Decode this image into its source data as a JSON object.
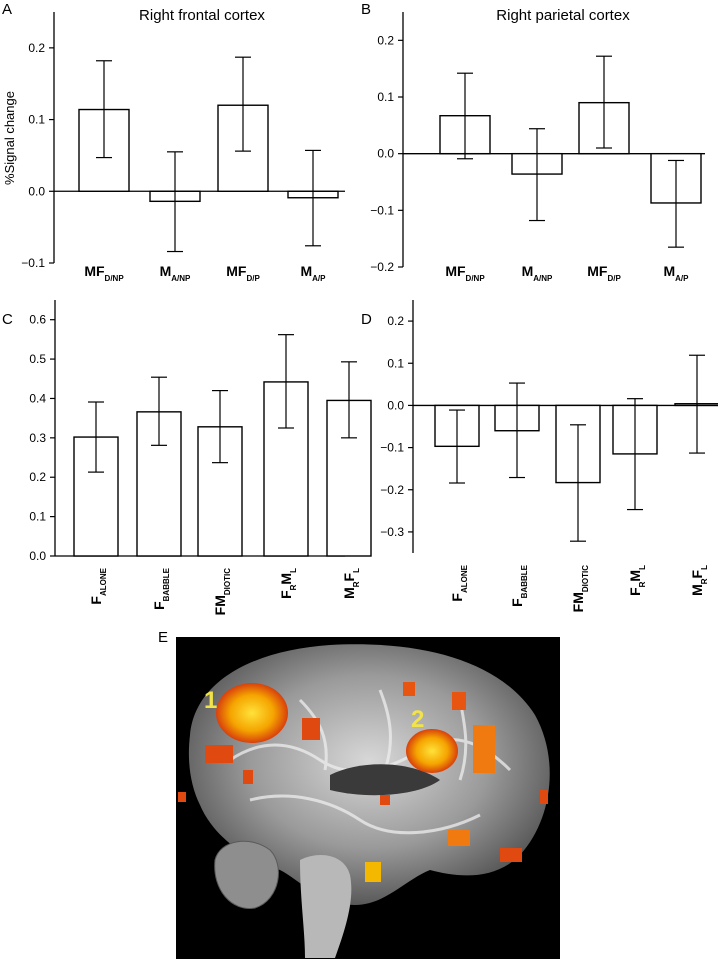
{
  "chart_data": [
    {
      "panel": "A",
      "type": "bar",
      "title": "Right frontal cortex",
      "ylabel": "%Signal  change",
      "ylim": [
        -0.1,
        0.25
      ],
      "yticks": [
        -0.1,
        0.0,
        0.1,
        0.2
      ],
      "ytick_labels": [
        "−0.1",
        "0.0",
        "0.1",
        "0.2"
      ],
      "categories": [
        {
          "main": "MF",
          "sub": "D/NP"
        },
        {
          "main": "M",
          "sub": "A/NP"
        },
        {
          "main": "MF",
          "sub": "D/P"
        },
        {
          "main": "M",
          "sub": "A/P"
        }
      ],
      "values": [
        0.114,
        -0.014,
        0.12,
        -0.009
      ],
      "err_low": [
        0.047,
        -0.084,
        0.056,
        -0.076
      ],
      "err_high": [
        0.182,
        0.055,
        0.187,
        0.057
      ],
      "grid": false
    },
    {
      "panel": "B",
      "type": "bar",
      "title": "Right parietal cortex",
      "ylabel": "",
      "ylim": [
        -0.2,
        0.25
      ],
      "yticks": [
        -0.2,
        -0.1,
        0.0,
        0.1,
        0.2
      ],
      "ytick_labels": [
        "−0.2",
        "−0.1",
        "0.0",
        "0.1",
        "0.2"
      ],
      "categories": [
        {
          "main": "MF",
          "sub": "D/NP"
        },
        {
          "main": "M",
          "sub": "A/NP"
        },
        {
          "main": "MF",
          "sub": "D/P"
        },
        {
          "main": "M",
          "sub": "A/P"
        }
      ],
      "values": [
        0.067,
        -0.036,
        0.09,
        -0.087
      ],
      "err_low": [
        -0.009,
        -0.118,
        0.01,
        -0.165
      ],
      "err_high": [
        0.142,
        0.044,
        0.172,
        -0.012
      ],
      "grid": false
    },
    {
      "panel": "C",
      "type": "bar",
      "title": "",
      "ylabel": "",
      "ylim": [
        0,
        0.65
      ],
      "yticks": [
        0.0,
        0.1,
        0.2,
        0.3,
        0.4,
        0.5,
        0.6
      ],
      "ytick_labels": [
        "0.0",
        "0.1",
        "0.2",
        "0.3",
        "0.4",
        "0.5",
        "0.6"
      ],
      "categories": [
        [
          {
            "t": "F"
          },
          {
            "t": "ALONE",
            "sub": true
          }
        ],
        [
          {
            "t": "F"
          },
          {
            "t": "BABBLE",
            "sub": true
          }
        ],
        [
          {
            "t": "FM"
          },
          {
            "t": "DIOTIC",
            "sub": true
          }
        ],
        [
          {
            "t": "F"
          },
          {
            "t": "R",
            "sub": true
          },
          {
            "t": "M"
          },
          {
            "t": "L",
            "sub": true
          }
        ],
        [
          {
            "t": "M"
          },
          {
            "t": "R",
            "sub": true
          },
          {
            "t": "F"
          },
          {
            "t": "L",
            "sub": true
          }
        ]
      ],
      "values": [
        0.302,
        0.366,
        0.328,
        0.442,
        0.395
      ],
      "err_low": [
        0.213,
        0.281,
        0.237,
        0.325,
        0.3
      ],
      "err_high": [
        0.391,
        0.454,
        0.42,
        0.562,
        0.493
      ],
      "grid": false
    },
    {
      "panel": "D",
      "type": "bar",
      "title": "",
      "ylabel": "",
      "ylim": [
        -0.35,
        0.25
      ],
      "yticks": [
        -0.3,
        -0.2,
        -0.1,
        0.0,
        0.1,
        0.2
      ],
      "ytick_labels": [
        "−0.3",
        "−0.2",
        "−0.1",
        "0.0",
        "0.1",
        "0.2"
      ],
      "categories": [
        [
          {
            "t": "F"
          },
          {
            "t": "ALONE",
            "sub": true
          }
        ],
        [
          {
            "t": "F"
          },
          {
            "t": "BABBLE",
            "sub": true
          }
        ],
        [
          {
            "t": "FM"
          },
          {
            "t": "DIOTIC",
            "sub": true
          }
        ],
        [
          {
            "t": "F"
          },
          {
            "t": "R",
            "sub": true
          },
          {
            "t": "M"
          },
          {
            "t": "L",
            "sub": true
          }
        ],
        [
          {
            "t": "M"
          },
          {
            "t": "R",
            "sub": true
          },
          {
            "t": "F"
          },
          {
            "t": "L",
            "sub": true
          }
        ]
      ],
      "values": [
        -0.097,
        -0.06,
        -0.183,
        -0.115,
        0.004
      ],
      "err_low": [
        -0.184,
        -0.171,
        -0.322,
        -0.247,
        -0.113
      ],
      "err_high": [
        -0.011,
        0.053,
        -0.046,
        0.016,
        0.119
      ],
      "grid": false
    }
  ],
  "panel_labels": {
    "a": "A",
    "b": "B",
    "c": "C",
    "d": "D",
    "e": "E"
  },
  "brain": {
    "label1": "1",
    "label2": "2",
    "activation_color": "#f5b800",
    "hot_color": "#e04a10"
  }
}
